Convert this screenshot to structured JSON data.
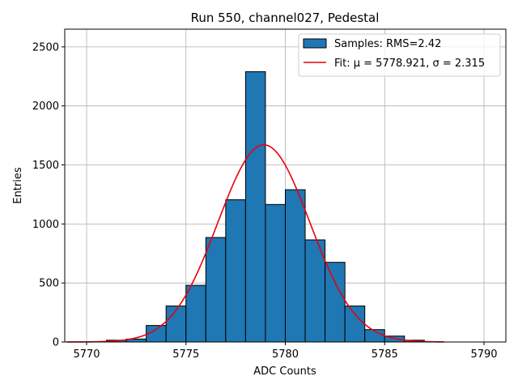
{
  "chart_data": {
    "type": "bar",
    "title": "Run 550, channel027, Pedestal",
    "xlabel": "ADC Counts",
    "ylabel": "Entries",
    "xlim": [
      5768.9,
      5791.1
    ],
    "ylim": [
      0,
      2650
    ],
    "xticks": [
      5770,
      5775,
      5780,
      5785,
      5790
    ],
    "yticks": [
      0,
      500,
      1000,
      1500,
      2000,
      2500
    ],
    "grid": true,
    "legend_position": "top-right",
    "bar_color": "#1f77b4",
    "fit_color": "#e8000b",
    "bins": [
      {
        "x0": 5771,
        "x1": 5772,
        "count": 15
      },
      {
        "x0": 5772,
        "x1": 5773,
        "count": 25
      },
      {
        "x0": 5773,
        "x1": 5774,
        "count": 140
      },
      {
        "x0": 5774,
        "x1": 5775,
        "count": 305
      },
      {
        "x0": 5775,
        "x1": 5776,
        "count": 480
      },
      {
        "x0": 5776,
        "x1": 5777,
        "count": 885
      },
      {
        "x0": 5777,
        "x1": 5778,
        "count": 1205
      },
      {
        "x0": 5778,
        "x1": 5779,
        "count": 2290
      },
      {
        "x0": 5779,
        "x1": 5780,
        "count": 1165
      },
      {
        "x0": 5780,
        "x1": 5781,
        "count": 1290
      },
      {
        "x0": 5781,
        "x1": 5782,
        "count": 865
      },
      {
        "x0": 5782,
        "x1": 5783,
        "count": 675
      },
      {
        "x0": 5783,
        "x1": 5784,
        "count": 305
      },
      {
        "x0": 5784,
        "x1": 5785,
        "count": 105
      },
      {
        "x0": 5785,
        "x1": 5786,
        "count": 50
      },
      {
        "x0": 5786,
        "x1": 5787,
        "count": 15
      }
    ],
    "fit": {
      "mu": 5778.921,
      "sigma": 2.315,
      "amplitude": 1670,
      "x_range": [
        5769,
        5788
      ]
    },
    "series": [
      {
        "name": "Samples: RMS=2.42"
      },
      {
        "name": "Fit: μ = 5778.921, σ = 2.315"
      }
    ]
  }
}
